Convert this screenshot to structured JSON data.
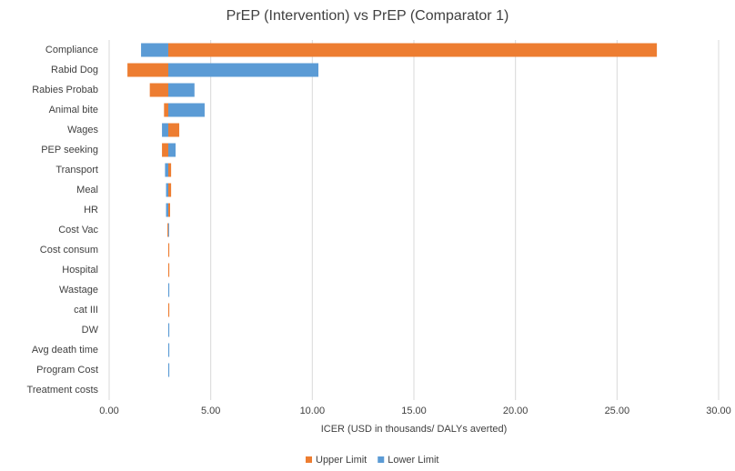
{
  "chart_data": {
    "type": "tornado",
    "title": "PrEP (Intervention) vs PrEP (Comparator 1)",
    "x_label": "ICER (USD in thousands/ DALYs averted)",
    "categories": [
      "Compliance",
      "Rabid Dog",
      "Rabies Probab",
      "Animal bite",
      "Wages",
      "PEP seeking",
      "Transport",
      "Meal",
      "HR",
      "Cost Vac",
      "Cost consum",
      "Hospital",
      "Wastage",
      "cat III",
      "DW",
      "Avg death time",
      "Program Cost",
      "Treatment costs"
    ],
    "base": 2.91,
    "series": [
      {
        "name": "Upper Limit",
        "color": "#ed7d31",
        "values": [
          26.96,
          0.9,
          2.0,
          2.7,
          3.45,
          2.6,
          3.05,
          3.05,
          3.0,
          2.87,
          2.96,
          2.96,
          2.91,
          2.96,
          2.91,
          2.91,
          2.91,
          2.91
        ]
      },
      {
        "name": "Lower Limit",
        "color": "#5b9bd5",
        "values": [
          1.57,
          10.3,
          4.2,
          4.7,
          2.6,
          3.27,
          2.75,
          2.8,
          2.8,
          2.95,
          2.91,
          2.91,
          2.96,
          2.91,
          2.96,
          2.96,
          2.96,
          2.91
        ]
      }
    ],
    "xlim": [
      0,
      30
    ],
    "xticks": [
      {
        "value": 0,
        "label": "0.00"
      },
      {
        "value": 5,
        "label": "5.00"
      },
      {
        "value": 10,
        "label": "10.00"
      },
      {
        "value": 15,
        "label": "15.00"
      },
      {
        "value": 20,
        "label": "20.00"
      },
      {
        "value": 25,
        "label": "25.00"
      },
      {
        "value": 30,
        "label": "30.00"
      }
    ],
    "grid": true,
    "legend": "bottom"
  }
}
